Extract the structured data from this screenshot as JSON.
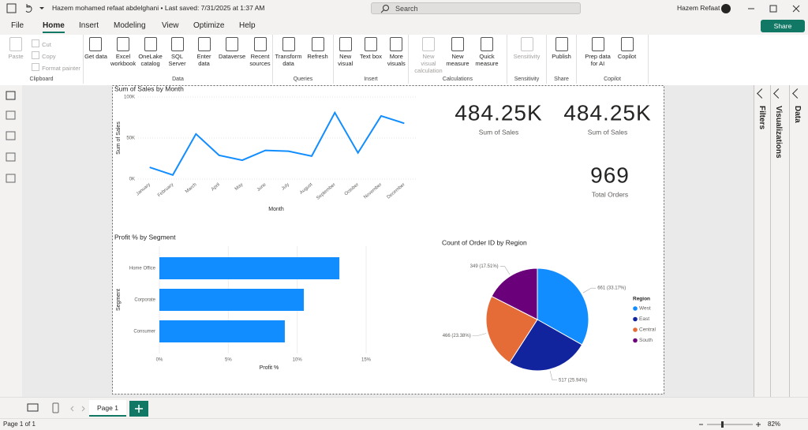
{
  "title_bar": {
    "document": "Hazem mohamed refaat abdelghani • Last saved: 7/31/2025 at 1:37 AM",
    "search": "Search",
    "user": "Hazem Refaat"
  },
  "menu": {
    "tabs": [
      "File",
      "Home",
      "Insert",
      "Modeling",
      "View",
      "Optimize",
      "Help"
    ],
    "active": 1,
    "share": "Share"
  },
  "ribbon": {
    "groups": [
      {
        "label": "Clipboard",
        "items": [
          "Paste",
          "Cut",
          "Copy",
          "Format painter"
        ]
      },
      {
        "label": "Data",
        "items": [
          "Get data",
          "Excel workbook",
          "OneLake catalog",
          "SQL Server",
          "Enter data",
          "Dataverse",
          "Recent sources"
        ]
      },
      {
        "label": "Queries",
        "items": [
          "Transform data",
          "Refresh"
        ]
      },
      {
        "label": "Insert",
        "items": [
          "New visual",
          "Text box",
          "More visuals"
        ]
      },
      {
        "label": "Calculations",
        "items": [
          "New visual calculation",
          "New measure",
          "Quick measure"
        ]
      },
      {
        "label": "Sensitivity",
        "items": [
          "Sensitivity"
        ]
      },
      {
        "label": "Share",
        "items": [
          "Publish"
        ]
      },
      {
        "label": "Copilot",
        "items": [
          "Prep data for AI",
          "Copilot"
        ]
      }
    ]
  },
  "side_panes": [
    "Filters",
    "Visualizations",
    "Data"
  ],
  "cards": [
    {
      "value": "484.25K",
      "label": "Sum of Sales"
    },
    {
      "value": "484.25K",
      "label": "Sum of Sales"
    },
    {
      "value": "969",
      "label": "Total Orders"
    }
  ],
  "chart_data": [
    {
      "type": "line",
      "title": "Sum of Sales by Month",
      "x_label": "Month",
      "y_label": "Sum of Sales",
      "categories": [
        "January",
        "February",
        "March",
        "April",
        "May",
        "June",
        "July",
        "August",
        "September",
        "October",
        "November",
        "December"
      ],
      "values": [
        14400,
        5000,
        55000,
        29000,
        23000,
        35000,
        34000,
        28000,
        81000,
        32000,
        77000,
        68000
      ],
      "color": "#118DFF",
      "ylim": [
        0,
        100000
      ],
      "yticks": [
        {
          "value": 0,
          "label": "0K"
        },
        {
          "value": 50000,
          "label": "50K"
        },
        {
          "value": 100000,
          "label": "100K"
        }
      ],
      "grid": true
    },
    {
      "type": "bar",
      "orientation": "horizontal",
      "title": "Profit % by Segment",
      "x_label": "Profit %",
      "y_label": "Segment",
      "categories": [
        "Home Office",
        "Corporate",
        "Consumer"
      ],
      "values": [
        13.06,
        10.48,
        9.1
      ],
      "color": "#118DFF",
      "xlim": [
        0,
        15
      ],
      "xticks": [
        {
          "value": 0,
          "label": "0%"
        },
        {
          "value": 5,
          "label": "5%"
        },
        {
          "value": 10,
          "label": "10%"
        },
        {
          "value": 15,
          "label": "15%"
        }
      ],
      "grid": true
    },
    {
      "type": "pie",
      "title": "Count of Order ID by Region",
      "categories": [
        "West",
        "East",
        "Central",
        "South"
      ],
      "values": [
        661,
        517,
        466,
        349
      ],
      "value_labels": [
        "661 (33.17%)",
        "517 (25.94%)",
        "466 (23.38%)",
        "349 (17.51%)"
      ],
      "colors": [
        "#118DFF",
        "#12239E",
        "#E66C37",
        "#6B007B"
      ],
      "legend_title": "Region",
      "legend": "right"
    }
  ],
  "page_tabs": [
    "Page 1"
  ],
  "status_bar": {
    "page": "Page 1 of 1",
    "zoom": "82%"
  }
}
